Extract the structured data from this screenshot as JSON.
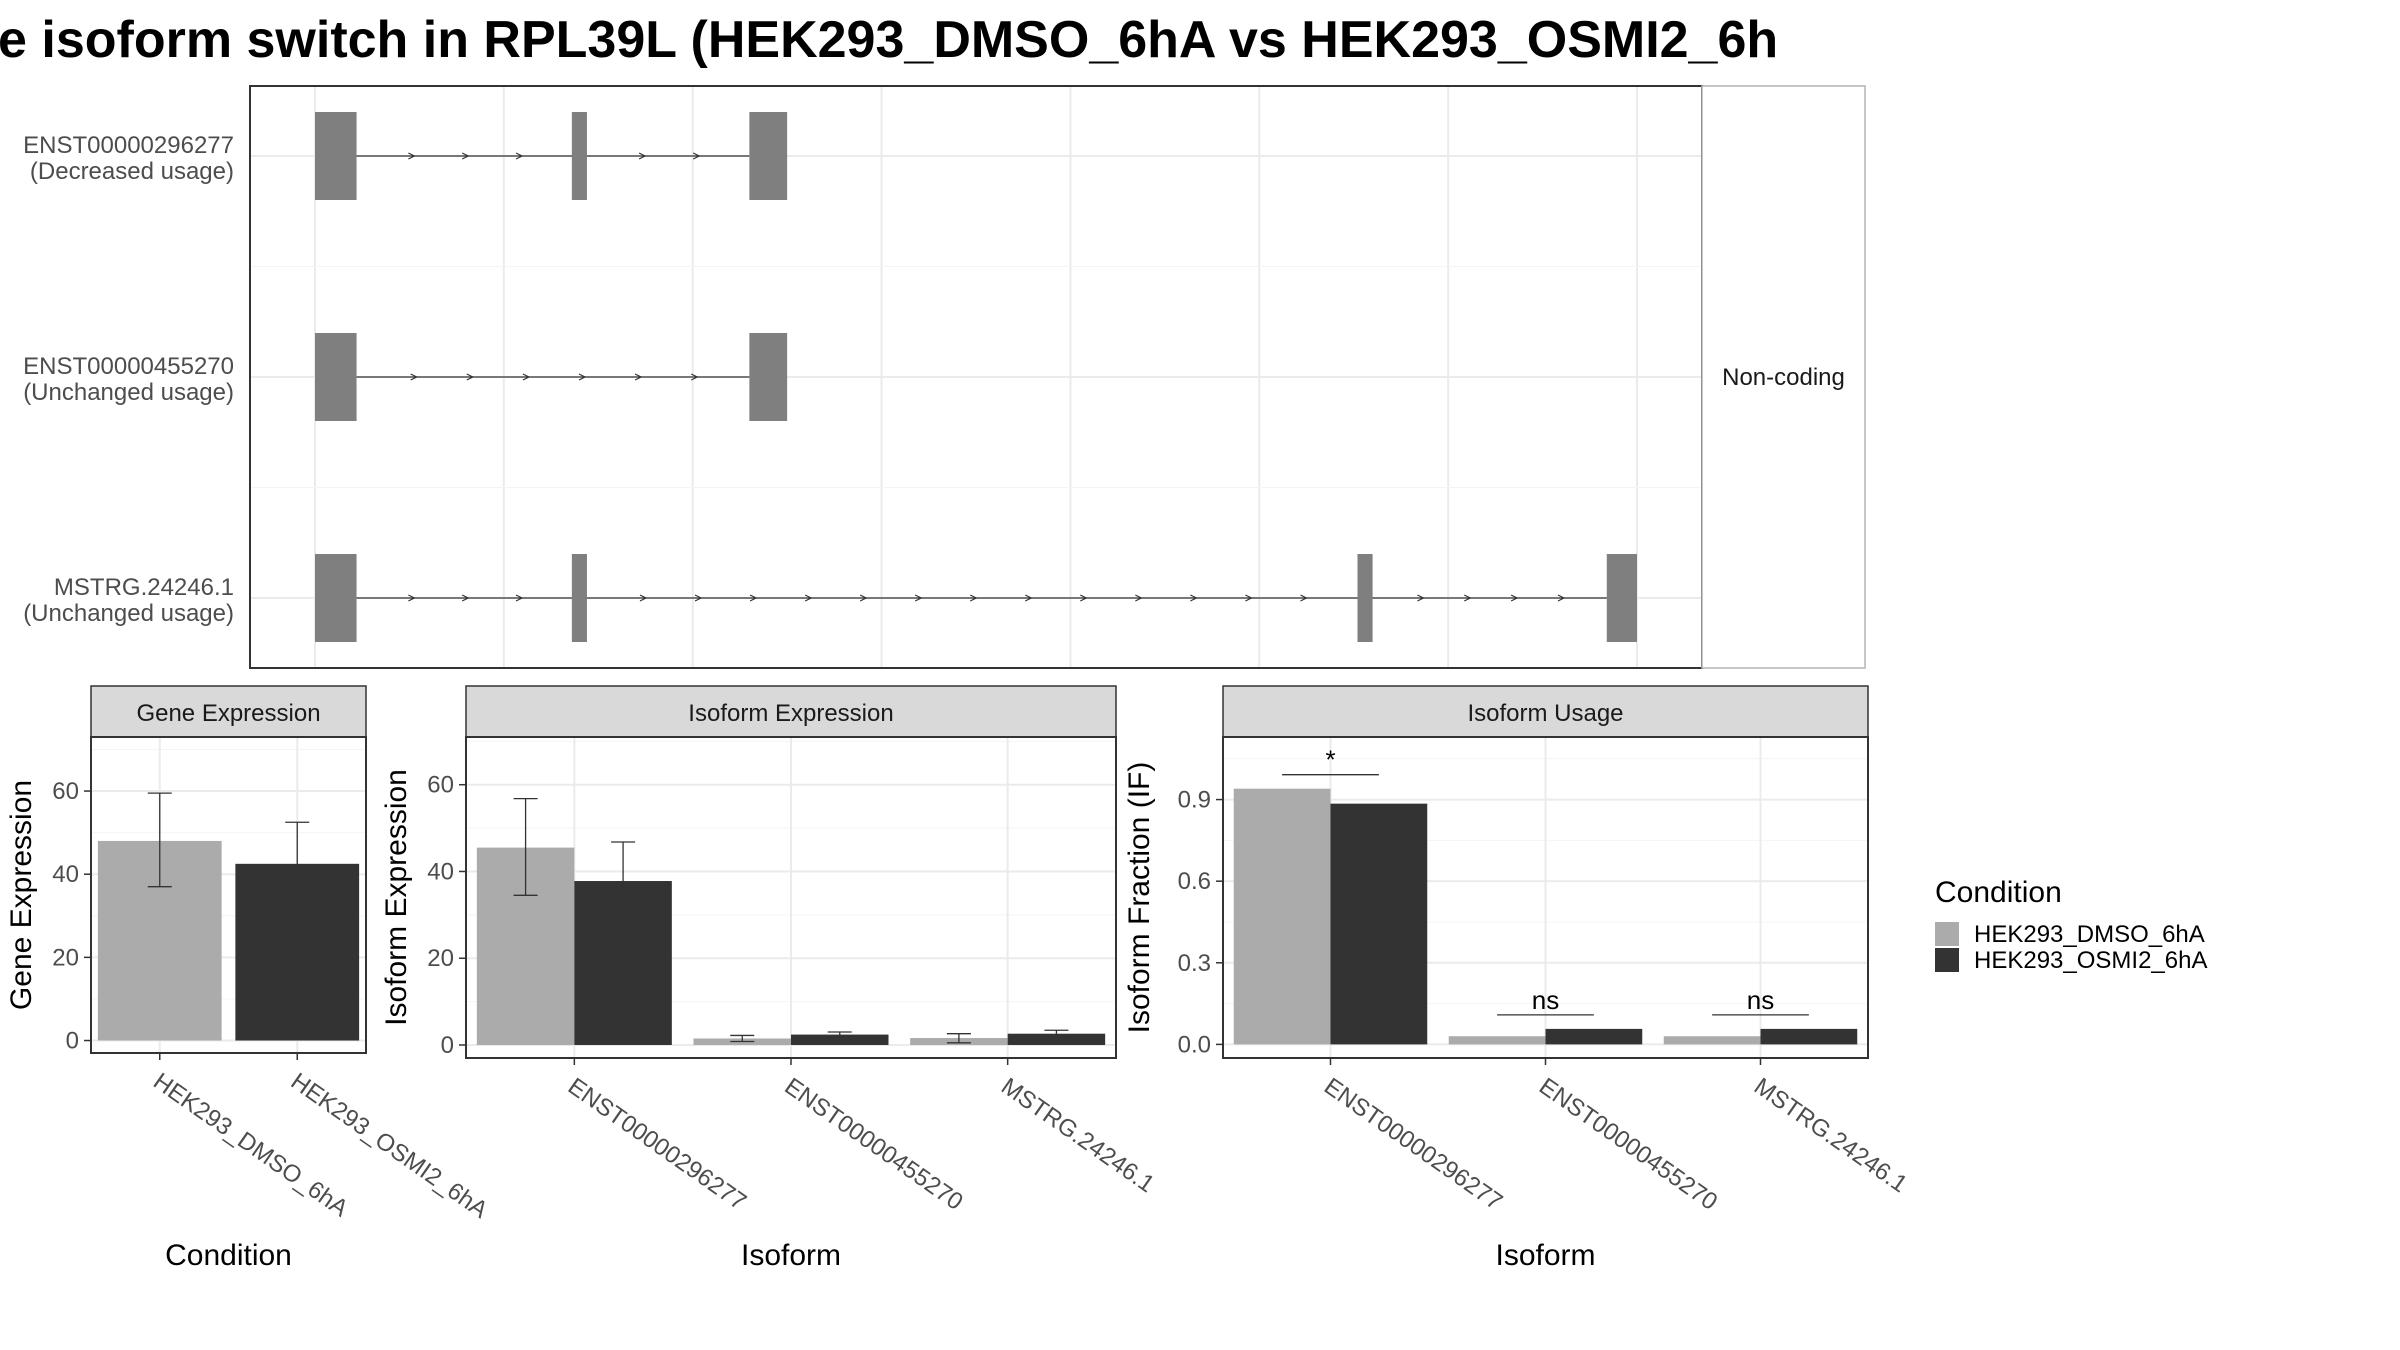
{
  "title": "e isoform switch in RPL39L (HEK293_DMSO_6hA vs HEK293_OSMI2_6h",
  "colors": {
    "dmso": "#ababab",
    "osmi2": "#333333",
    "exon": "#7f7f7f",
    "grid": "#ebebeb",
    "panel_border": "#333333",
    "strip_border": "#b3b3b3",
    "axis_text": "#4d4d4d"
  },
  "legend": {
    "title": "Condition",
    "items": [
      {
        "label": "HEK293_DMSO_6hA",
        "color_key": "dmso"
      },
      {
        "label": "HEK293_OSMI2_6hA",
        "color_key": "osmi2"
      }
    ]
  },
  "chart_data": [
    {
      "type": "diagram",
      "panel": "transcript-structure",
      "facet_label": "Non-coding",
      "transcripts": [
        {
          "id": "ENST00000296277",
          "usage": "(Decreased usage)",
          "exons": [
            [
              0,
              5.5
            ],
            [
              34,
              36
            ],
            [
              57.5,
              62.5
            ]
          ]
        },
        {
          "id": "ENST00000455270",
          "usage": "(Unchanged usage)",
          "exons": [
            [
              0,
              5.5
            ],
            [
              57.5,
              62.5
            ]
          ]
        },
        {
          "id": "MSTRG.24246.1",
          "usage": "(Unchanged usage)",
          "exons": [
            [
              0,
              5.5
            ],
            [
              34,
              36
            ],
            [
              138,
              140
            ],
            [
              171,
              175
            ]
          ]
        }
      ]
    },
    {
      "type": "bar",
      "panel": "gene-expression",
      "strip": "Gene Expression",
      "xlabel": "Condition",
      "ylabel": "Gene Expression",
      "categories": [
        "HEK293_DMSO_6hA",
        "HEK293_OSMI2_6hA"
      ],
      "values": [
        48,
        42.5
      ],
      "errors": [
        [
          37,
          59.5
        ],
        [
          33,
          52.5
        ]
      ],
      "ylim": [
        -3,
        73
      ],
      "yticks": [
        0,
        20,
        40,
        60
      ]
    },
    {
      "type": "bar",
      "panel": "isoform-expression",
      "strip": "Isoform Expression",
      "xlabel": "Isoform",
      "ylabel": "Isoform Expression",
      "categories": [
        "ENST00000296277",
        "ENST00000455270",
        "MSTRG.24246.1"
      ],
      "series": [
        {
          "name": "HEK293_DMSO_6hA",
          "values": [
            45.5,
            1.5,
            1.6
          ],
          "errors": [
            [
              34.5,
              56.8
            ],
            [
              0.8,
              2.2
            ],
            [
              0.5,
              2.6
            ]
          ]
        },
        {
          "name": "HEK293_OSMI2_6hA",
          "values": [
            37.8,
            2.4,
            2.6
          ],
          "errors": [
            [
              29,
              46.8
            ],
            [
              1.8,
              3.0
            ],
            [
              1.8,
              3.4
            ]
          ]
        }
      ],
      "ylim": [
        -3,
        71
      ],
      "yticks": [
        0,
        20,
        40,
        60
      ]
    },
    {
      "type": "bar",
      "panel": "isoform-usage",
      "strip": "Isoform Usage",
      "xlabel": "Isoform",
      "ylabel": "Isoform Fraction (IF)",
      "categories": [
        "ENST00000296277",
        "ENST00000455270",
        "MSTRG.24246.1"
      ],
      "series": [
        {
          "name": "HEK293_DMSO_6hA",
          "values": [
            0.94,
            0.03,
            0.03
          ]
        },
        {
          "name": "HEK293_OSMI2_6hA",
          "values": [
            0.885,
            0.057,
            0.057
          ]
        }
      ],
      "significance": [
        "*",
        "ns",
        "ns"
      ],
      "ylim": [
        -0.05,
        1.13
      ],
      "yticks": [
        0.0,
        0.3,
        0.6,
        0.9
      ],
      "ytick_labels": [
        "0.0",
        "0.3",
        "0.6",
        "0.9"
      ]
    }
  ]
}
